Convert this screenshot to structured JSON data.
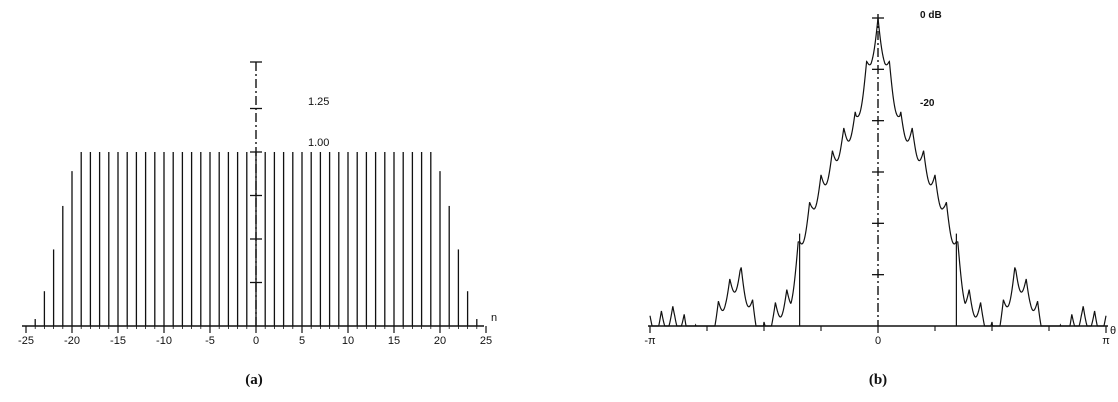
{
  "chart_data": [
    {
      "type": "bar",
      "caption": "(a)",
      "xlabel": "n",
      "xlim": [
        -25,
        25
      ],
      "ylim": [
        0,
        1.3
      ],
      "x_tick_labels": [
        "-25",
        "-20",
        "-15",
        "-10",
        "-5",
        "0",
        "5",
        "10",
        "15",
        "20",
        "25"
      ],
      "y_axis_labels": [
        "1.25",
        "1.00"
      ],
      "x": [
        -24,
        -23,
        -22,
        -21,
        -20,
        -19,
        -18,
        -17,
        -16,
        -15,
        -14,
        -13,
        -12,
        -11,
        -10,
        -9,
        -8,
        -7,
        -6,
        -5,
        -4,
        -3,
        -2,
        -1,
        0,
        1,
        2,
        3,
        4,
        5,
        6,
        7,
        8,
        9,
        10,
        11,
        12,
        13,
        14,
        15,
        16,
        17,
        18,
        19,
        20,
        21,
        22,
        23,
        24
      ],
      "values": [
        0.04,
        0.2,
        0.44,
        0.69,
        0.89,
        1.0,
        1.0,
        1.0,
        1.0,
        1.0,
        1.0,
        1.0,
        1.0,
        1.0,
        1.0,
        1.0,
        1.0,
        1.0,
        1.0,
        1.0,
        1.0,
        1.0,
        1.0,
        1.0,
        1.0,
        1.0,
        1.0,
        1.0,
        1.0,
        1.0,
        1.0,
        1.0,
        1.0,
        1.0,
        1.0,
        1.0,
        1.0,
        1.0,
        1.0,
        1.0,
        1.0,
        1.0,
        1.0,
        1.0,
        0.89,
        0.69,
        0.44,
        0.2,
        0.04
      ]
    },
    {
      "type": "line",
      "caption": "(b)",
      "xlabel": "θ",
      "xlim": [
        -3.1416,
        3.1416
      ],
      "ylim": [
        -60,
        0
      ],
      "x_tick_labels": [
        "-π",
        "0",
        "π"
      ],
      "y_axis_labels": [
        "0 dB",
        "-20"
      ],
      "envelope": {
        "x": [
          0,
          0.15,
          0.3,
          0.5,
          0.7,
          0.9,
          1.08,
          1.2,
          1.45,
          1.6,
          1.9,
          2.1,
          2.35,
          2.5,
          2.8,
          3.1416
        ],
        "y": [
          0,
          -8,
          -18,
          -22,
          -28,
          -34,
          -42,
          -52,
          -56,
          -60,
          -48,
          -52,
          -60,
          -60,
          -56,
          -58
        ]
      }
    }
  ]
}
